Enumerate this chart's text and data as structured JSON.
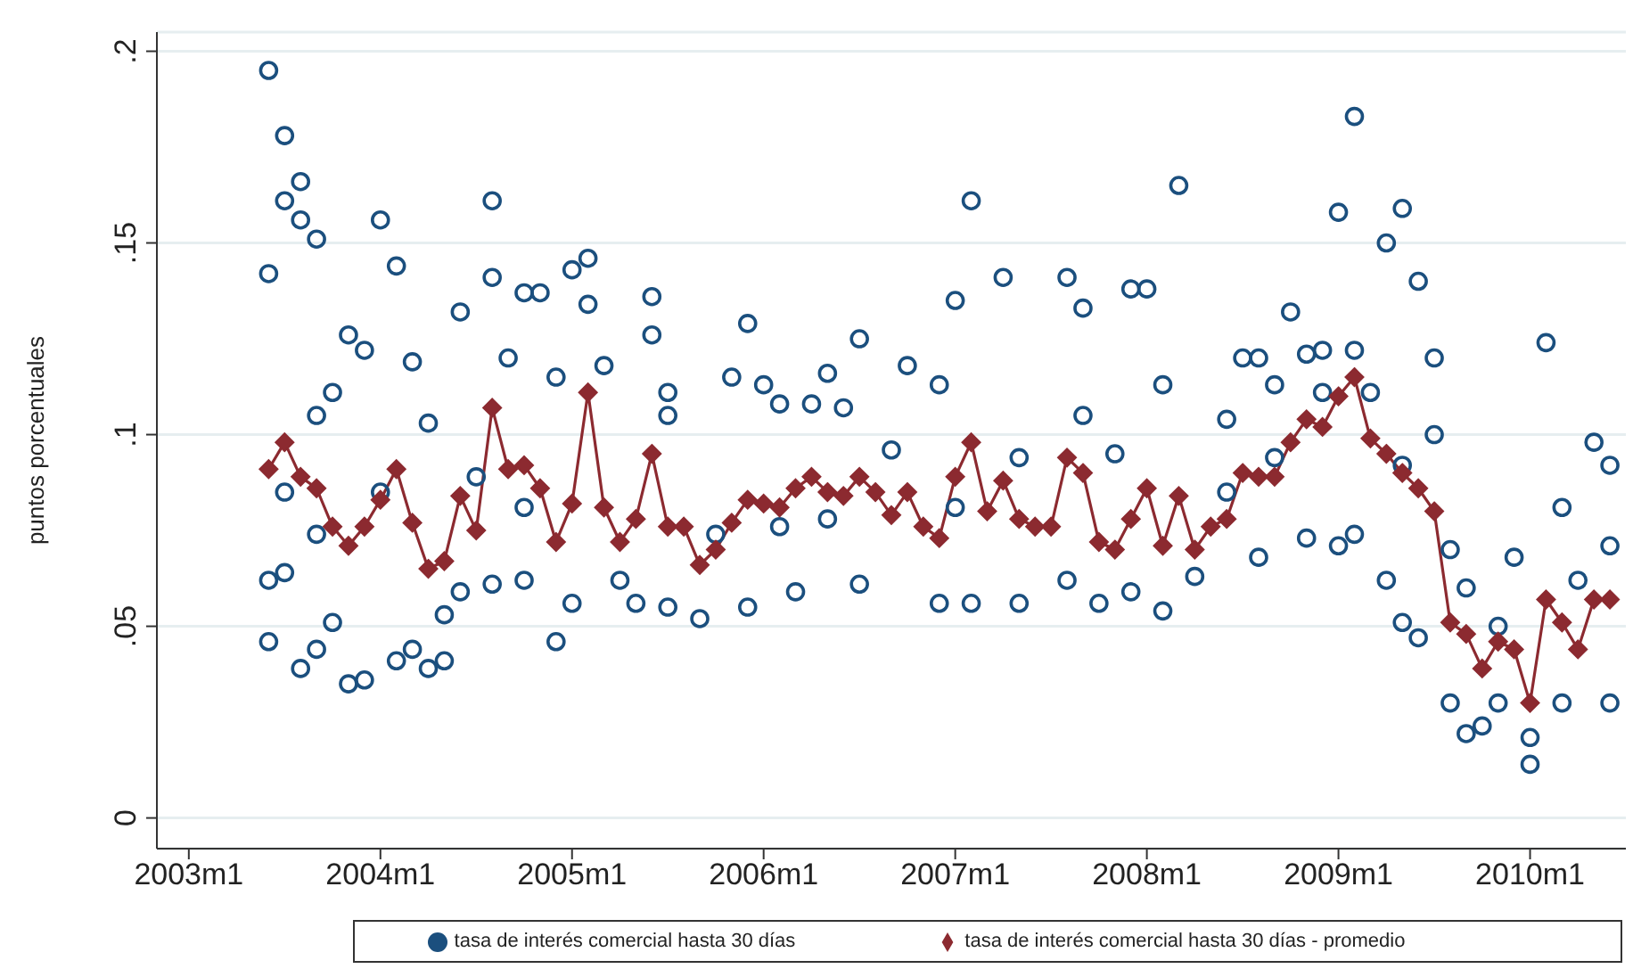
{
  "chart_data": {
    "type": "scatter",
    "ylabel": "puntos porcentuales",
    "grid": "y",
    "legend": "bottom",
    "xlim": [
      "2002-11",
      "2010-07"
    ],
    "xticks": [
      {
        "value": "2003-01",
        "label": "2003m1"
      },
      {
        "value": "2004-01",
        "label": "2004m1"
      },
      {
        "value": "2005-01",
        "label": "2005m1"
      },
      {
        "value": "2006-01",
        "label": "2006m1"
      },
      {
        "value": "2007-01",
        "label": "2007m1"
      },
      {
        "value": "2008-01",
        "label": "2008m1"
      },
      {
        "value": "2009-01",
        "label": "2009m1"
      },
      {
        "value": "2010-01",
        "label": "2010m1"
      }
    ],
    "ylim": [
      -0.008,
      0.205
    ],
    "yticks": [
      {
        "value": 0,
        "label": "0"
      },
      {
        "value": 0.05,
        "label": ".05"
      },
      {
        "value": 0.1,
        "label": ".1"
      },
      {
        "value": 0.15,
        "label": ".15"
      },
      {
        "value": 0.2,
        "label": ".2"
      }
    ],
    "series": [
      {
        "name": "tasa de interés comercial hasta 30 días",
        "color": "#1b4f7e",
        "type": "scatter",
        "marker": "circle",
        "x": [
          "2003-06",
          "2003-06",
          "2003-07",
          "2003-08",
          "2003-07",
          "2003-08",
          "2003-09",
          "2003-06",
          "2003-06",
          "2003-07",
          "2003-08",
          "2003-07",
          "2003-09",
          "2003-10",
          "2003-11",
          "2003-12",
          "2004-01",
          "2004-02",
          "2003-11",
          "2003-12",
          "2004-03",
          "2004-04",
          "2004-04",
          "2004-05",
          "2004-06",
          "2004-08",
          "2004-08",
          "2004-10",
          "2004-11",
          "2005-01",
          "2005-02",
          "2005-02",
          "2004-12",
          "2004-09",
          "2004-12",
          "2005-03",
          "2005-06",
          "2005-06",
          "2003-10",
          "2003-09",
          "2004-02",
          "2004-03",
          "2004-05",
          "2004-06",
          "2004-08",
          "2004-10",
          "2005-01",
          "2005-04",
          "2005-05",
          "2003-09",
          "2004-01",
          "2004-07",
          "2004-10",
          "2005-07",
          "2005-07",
          "2005-09",
          "2005-12",
          "2005-11",
          "2006-01",
          "2006-02",
          "2006-04",
          "2006-05",
          "2006-07",
          "2006-06",
          "2006-10",
          "2006-12",
          "2007-01",
          "2007-02",
          "2007-04",
          "2007-08",
          "2007-09",
          "2007-12",
          "2005-07",
          "2005-12",
          "2006-03",
          "2006-07",
          "2006-12",
          "2007-02",
          "2007-05",
          "2007-08",
          "2007-10",
          "2007-12",
          "2005-10",
          "2006-02",
          "2006-05",
          "2006-09",
          "2007-01",
          "2007-05",
          "2007-09",
          "2007-11",
          "2008-01",
          "2008-03",
          "2008-02",
          "2008-06",
          "2008-07",
          "2008-08",
          "2008-09",
          "2008-10",
          "2008-11",
          "2008-12",
          "2009-01",
          "2009-02",
          "2009-02",
          "2009-04",
          "2009-05",
          "2009-06",
          "2009-07",
          "2009-07",
          "2008-02",
          "2008-04",
          "2008-08",
          "2008-11",
          "2009-01",
          "2009-02",
          "2009-04",
          "2009-05",
          "2009-06",
          "2009-08",
          "2009-09",
          "2009-10",
          "2009-11",
          "2009-12",
          "2010-01",
          "2010-01",
          "2010-02",
          "2010-03",
          "2010-05",
          "2010-06",
          "2010-06",
          "2010-03",
          "2010-04",
          "2010-06",
          "2008-06",
          "2008-09",
          "2008-12",
          "2009-03",
          "2009-05",
          "2009-08",
          "2009-09",
          "2009-11"
        ],
        "values": [
          0.195,
          0.142,
          0.178,
          0.166,
          0.161,
          0.156,
          0.151,
          0.062,
          0.046,
          0.085,
          0.039,
          0.064,
          0.105,
          0.111,
          0.126,
          0.122,
          0.156,
          0.144,
          0.035,
          0.036,
          0.119,
          0.103,
          0.039,
          0.041,
          0.132,
          0.161,
          0.141,
          0.137,
          0.137,
          0.143,
          0.146,
          0.134,
          0.046,
          0.12,
          0.115,
          0.118,
          0.136,
          0.126,
          0.051,
          0.044,
          0.041,
          0.044,
          0.053,
          0.059,
          0.061,
          0.062,
          0.056,
          0.062,
          0.056,
          0.074,
          0.085,
          0.089,
          0.081,
          0.111,
          0.105,
          0.052,
          0.129,
          0.115,
          0.113,
          0.108,
          0.108,
          0.116,
          0.125,
          0.107,
          0.118,
          0.113,
          0.135,
          0.161,
          0.141,
          0.141,
          0.133,
          0.138,
          0.055,
          0.055,
          0.059,
          0.061,
          0.056,
          0.056,
          0.056,
          0.062,
          0.056,
          0.059,
          0.074,
          0.076,
          0.078,
          0.096,
          0.081,
          0.094,
          0.105,
          0.095,
          0.138,
          0.165,
          0.113,
          0.104,
          0.12,
          0.12,
          0.113,
          0.132,
          0.121,
          0.122,
          0.158,
          0.183,
          0.122,
          0.15,
          0.159,
          0.14,
          0.12,
          0.1,
          0.054,
          0.063,
          0.068,
          0.073,
          0.071,
          0.074,
          0.062,
          0.051,
          0.047,
          0.03,
          0.022,
          0.024,
          0.03,
          0.068,
          0.021,
          0.014,
          0.124,
          0.081,
          0.098,
          0.092,
          0.03,
          0.03,
          0.062,
          0.071,
          0.085,
          0.094,
          0.111,
          0.111,
          0.092,
          0.07,
          0.06,
          0.05
        ]
      },
      {
        "name": "tasa de interés comercial hasta 30 días - promedio",
        "color": "#8c2a30",
        "type": "line",
        "marker": "diamond",
        "line_style": "solid",
        "x": [
          "2003-06",
          "2003-07",
          "2003-08",
          "2003-09",
          "2003-10",
          "2003-11",
          "2003-12",
          "2004-01",
          "2004-02",
          "2004-03",
          "2004-04",
          "2004-05",
          "2004-06",
          "2004-07",
          "2004-08",
          "2004-09",
          "2004-10",
          "2004-11",
          "2004-12",
          "2005-01",
          "2005-02",
          "2005-03",
          "2005-04",
          "2005-05",
          "2005-06",
          "2005-07",
          "2005-08",
          "2005-09",
          "2005-10",
          "2005-11",
          "2005-12",
          "2006-01",
          "2006-02",
          "2006-03",
          "2006-04",
          "2006-05",
          "2006-06",
          "2006-07",
          "2006-08",
          "2006-09",
          "2006-10",
          "2006-11",
          "2006-12",
          "2007-01",
          "2007-02",
          "2007-03",
          "2007-04",
          "2007-05",
          "2007-06",
          "2007-07",
          "2007-08",
          "2007-09",
          "2007-10",
          "2007-11",
          "2007-12",
          "2008-01",
          "2008-02",
          "2008-03",
          "2008-04",
          "2008-05",
          "2008-06",
          "2008-07",
          "2008-08",
          "2008-09",
          "2008-10",
          "2008-11",
          "2008-12",
          "2009-01",
          "2009-02",
          "2009-03",
          "2009-04",
          "2009-05",
          "2009-06",
          "2009-07",
          "2009-08",
          "2009-09",
          "2009-10",
          "2009-11",
          "2009-12",
          "2010-01",
          "2010-02",
          "2010-03",
          "2010-04",
          "2010-05",
          "2010-06"
        ],
        "values": [
          0.091,
          0.098,
          0.089,
          0.086,
          0.076,
          0.071,
          0.076,
          0.083,
          0.091,
          0.077,
          0.065,
          0.067,
          0.084,
          0.075,
          0.107,
          0.091,
          0.092,
          0.086,
          0.072,
          0.082,
          0.111,
          0.081,
          0.072,
          0.078,
          0.095,
          0.076,
          0.076,
          0.066,
          0.07,
          0.077,
          0.083,
          0.082,
          0.081,
          0.086,
          0.089,
          0.085,
          0.084,
          0.089,
          0.085,
          0.079,
          0.085,
          0.076,
          0.073,
          0.089,
          0.098,
          0.08,
          0.088,
          0.078,
          0.076,
          0.076,
          0.094,
          0.09,
          0.072,
          0.07,
          0.078,
          0.086,
          0.071,
          0.084,
          0.07,
          0.076,
          0.078,
          0.09,
          0.089,
          0.089,
          0.098,
          0.104,
          0.102,
          0.11,
          0.115,
          0.099,
          0.095,
          0.09,
          0.086,
          0.08,
          0.051,
          0.048,
          0.039,
          0.046,
          0.044,
          0.03,
          0.057,
          0.051,
          0.044,
          0.057,
          0.057
        ]
      }
    ]
  }
}
